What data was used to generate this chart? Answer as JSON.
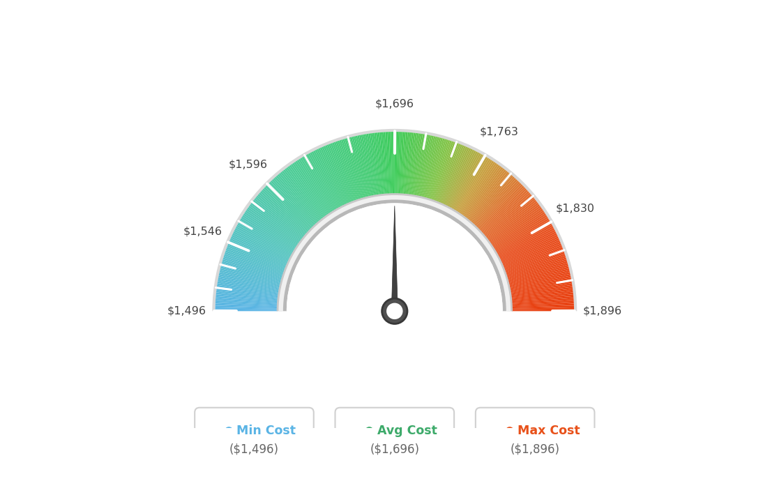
{
  "min_val": 1496,
  "max_val": 1896,
  "avg_val": 1696,
  "needle_val": 1696,
  "tick_labels": [
    "$1,496",
    "$1,546",
    "$1,596",
    "$1,696",
    "$1,763",
    "$1,830",
    "$1,896"
  ],
  "tick_values": [
    1496,
    1546,
    1596,
    1696,
    1763,
    1830,
    1896
  ],
  "legend_items": [
    {
      "label": "Min Cost",
      "sublabel": "($1,496)",
      "color": "#5ab4e5"
    },
    {
      "label": "Avg Cost",
      "sublabel": "($1,696)",
      "color": "#3daa6a"
    },
    {
      "label": "Max Cost",
      "sublabel": "($1,896)",
      "color": "#e8511a"
    }
  ],
  "bg_color": "#ffffff",
  "gauge_colors": [
    [
      0.0,
      "#5ab4e5"
    ],
    [
      0.15,
      "#55c4c0"
    ],
    [
      0.3,
      "#4dcc96"
    ],
    [
      0.45,
      "#45cc72"
    ],
    [
      0.5,
      "#3dcc5a"
    ],
    [
      0.6,
      "#85c448"
    ],
    [
      0.68,
      "#c8a040"
    ],
    [
      0.76,
      "#e07030"
    ],
    [
      0.85,
      "#e85020"
    ],
    [
      1.0,
      "#e84010"
    ]
  ]
}
